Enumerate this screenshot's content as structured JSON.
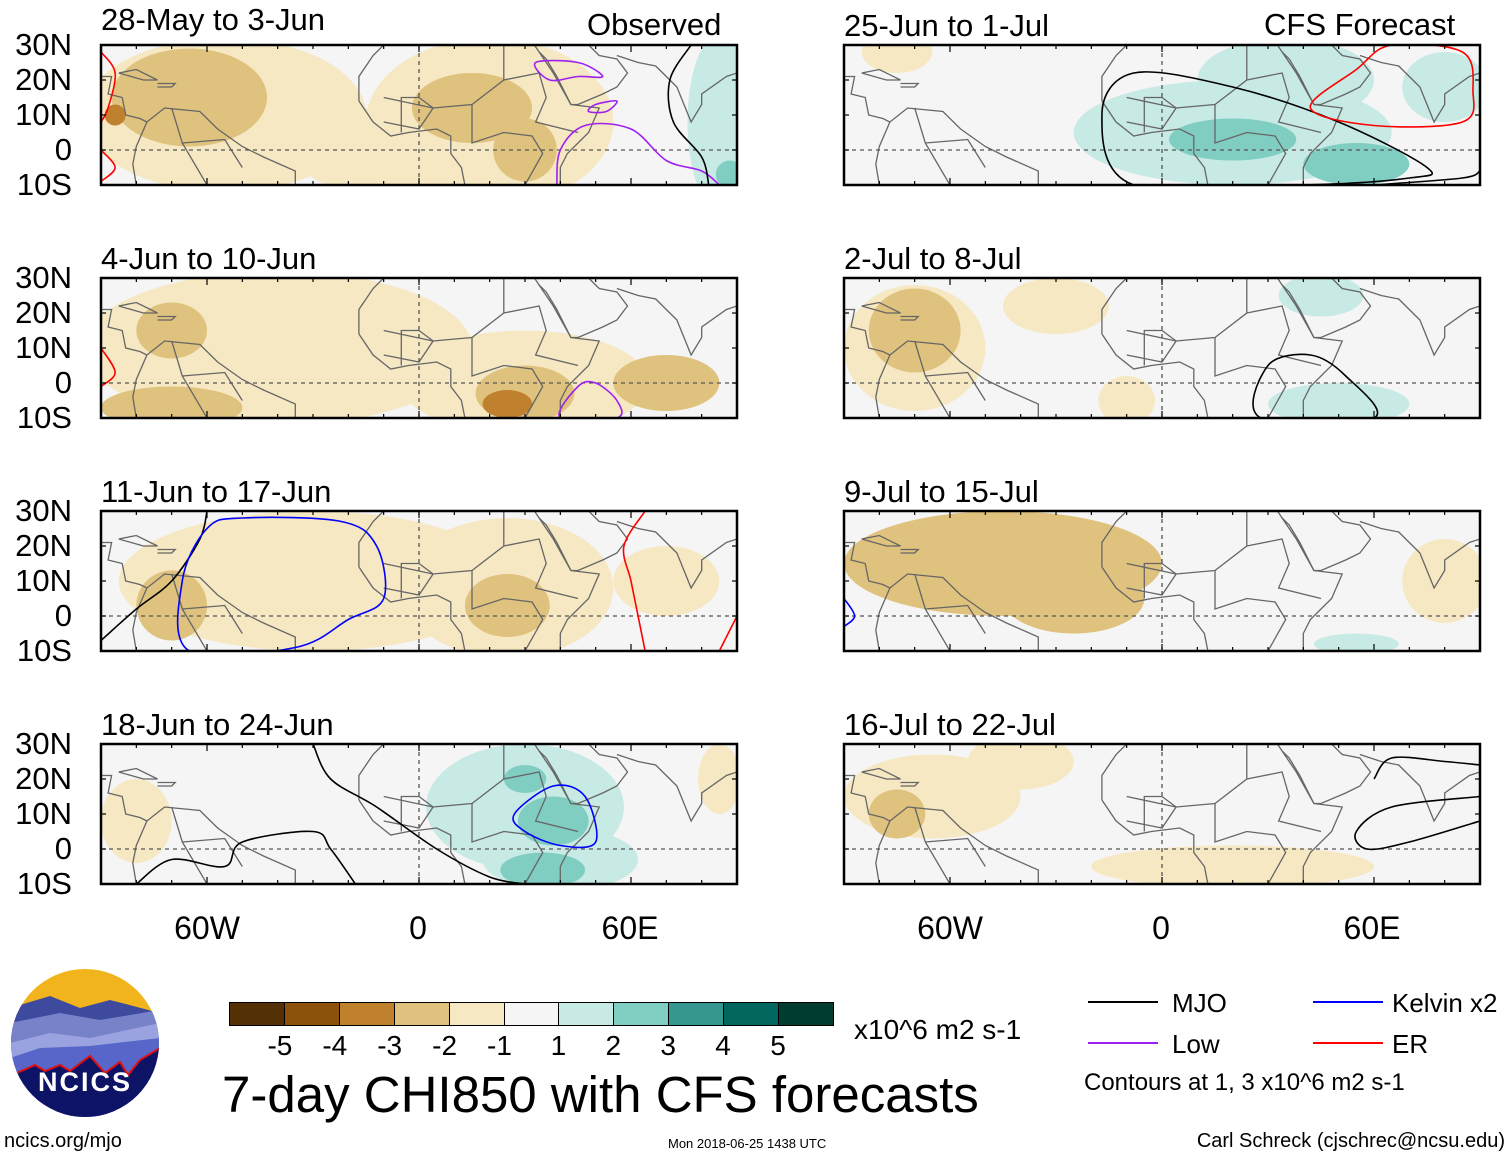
{
  "chart_data": {
    "type": "heatmap",
    "title": "7-day CHI850 with CFS forecasts",
    "variable": "CHI850 anomaly",
    "units": "x10^6 m2 s-1",
    "lat_ticks": [
      "30N",
      "20N",
      "10N",
      "0",
      "10S"
    ],
    "lon_ticks": [
      "60W",
      "0",
      "60E"
    ],
    "lon_range": [
      -90,
      90
    ],
    "lat_range": [
      -10,
      30
    ],
    "columns": [
      {
        "label": "Observed",
        "panels": [
          "28-May to 3-Jun",
          "4-Jun to 10-Jun",
          "11-Jun to 17-Jun",
          "18-Jun to 24-Jun"
        ]
      },
      {
        "label": "CFS Forecast",
        "panels": [
          "25-Jun to 1-Jul",
          "2-Jul to 8-Jul",
          "9-Jul to 15-Jul",
          "16-Jul to 22-Jul"
        ]
      }
    ],
    "colorbar": {
      "levels": [
        "-5",
        "-4",
        "-3",
        "-2",
        "-1",
        "1",
        "2",
        "3",
        "4",
        "5"
      ],
      "colors": [
        "#543005",
        "#8c510a",
        "#bf812d",
        "#dfc27d",
        "#f6e8c3",
        "#f5f5f5",
        "#c7eae5",
        "#80cdc1",
        "#35978f",
        "#01665e",
        "#003c30"
      ]
    },
    "contour_legend": [
      {
        "label": "MJO",
        "color": "#000000"
      },
      {
        "label": "Kelvin x2",
        "color": "#0000ff"
      },
      {
        "label": "Low",
        "color": "#a020f0"
      },
      {
        "label": "ER",
        "color": "#ff0000"
      }
    ],
    "contour_note": "Contours at 1, 3 x10^6 m2 s-1"
  },
  "footer": {
    "logo_text": "NCICS",
    "url": "ncics.org/mjo",
    "timestamp": "Mon 2018-06-25 1438 UTC",
    "author": "Carl Schreck (cjschrec@ncsu.edu)"
  }
}
